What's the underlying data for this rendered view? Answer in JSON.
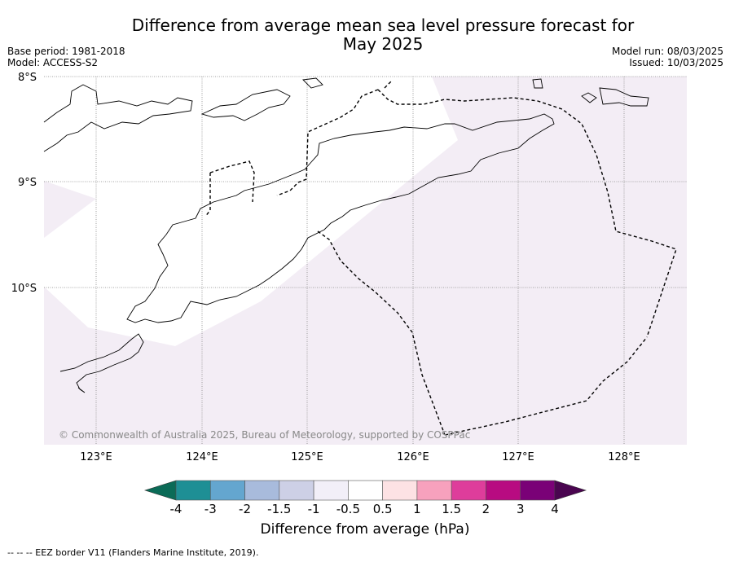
{
  "title": "Difference from average mean sea level pressure forecast for May 2025",
  "title_lines": [
    "Difference from average mean sea level pressure forecast for",
    "May 2025"
  ],
  "meta": {
    "base_period": "Base period: 1981-2018",
    "model": "Model: ACCESS-S2",
    "model_run": "Model run: 08/03/2025",
    "issued": "Issued: 10/03/2025"
  },
  "map": {
    "lat_labels": [
      "8°S",
      "9°S",
      "10°S"
    ],
    "lon_labels": [
      "123°E",
      "124°E",
      "125°E",
      "126°E",
      "127°E",
      "128°E"
    ],
    "copyright": "© Commonwealth of Australia 2025, Bureau of Meteorology, supported by COSPPac",
    "land_color": "#ffffff",
    "anomaly_fill_color": "#f3edf5"
  },
  "colorbar": {
    "label": "Difference from average (hPa)",
    "tick_labels": [
      "-4",
      "-3",
      "-2",
      "-1.5",
      "-1",
      "-0.5",
      "0.5",
      "1",
      "1.5",
      "2",
      "3",
      "4"
    ],
    "colors": [
      "#0b6b57",
      "#1e8f95",
      "#64a6cf",
      "#a8bbdc",
      "#cdd0e6",
      "#f2eff8",
      "#ffffff",
      "#fde2e4",
      "#f7a1bd",
      "#de3d9b",
      "#b80b81",
      "#7a0177",
      "#4a0550"
    ]
  },
  "footnote": "-- -- -- EEZ border V11 (Flanders Marine Institute, 2019)."
}
